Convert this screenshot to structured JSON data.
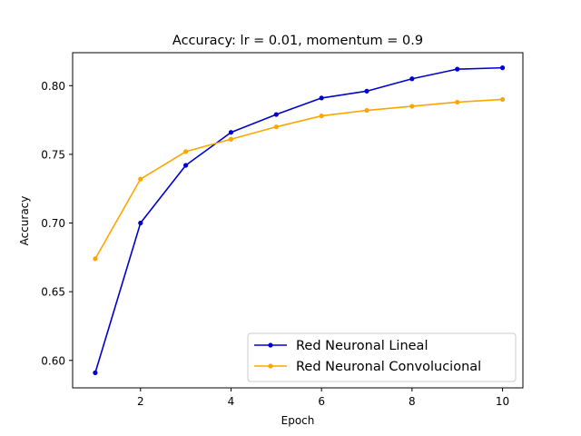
{
  "chart_data": {
    "type": "line",
    "title": "Accuracy: lr = 0.01, momentum = 0.9",
    "xlabel": "Epoch",
    "ylabel": "Accuracy",
    "x": [
      1,
      2,
      3,
      4,
      5,
      6,
      7,
      8,
      9,
      10
    ],
    "xlim": [
      0.5,
      10.45
    ],
    "ylim": [
      0.58,
      0.824
    ],
    "xticks": [
      2,
      4,
      6,
      8,
      10
    ],
    "yticks": [
      0.6,
      0.65,
      0.7,
      0.75,
      0.8
    ],
    "ytick_labels": [
      "0.60",
      "0.65",
      "0.70",
      "0.75",
      "0.80"
    ],
    "grid": false,
    "legend_position": "lower-right",
    "series": [
      {
        "name": "Red Neuronal Lineal",
        "color": "#0000cd",
        "values": [
          0.591,
          0.7,
          0.742,
          0.766,
          0.779,
          0.791,
          0.796,
          0.805,
          0.812,
          0.813
        ]
      },
      {
        "name": "Red Neuronal Convolucional",
        "color": "#ffa500",
        "values": [
          0.674,
          0.732,
          0.752,
          0.761,
          0.77,
          0.778,
          0.782,
          0.785,
          0.788,
          0.79
        ]
      }
    ]
  }
}
